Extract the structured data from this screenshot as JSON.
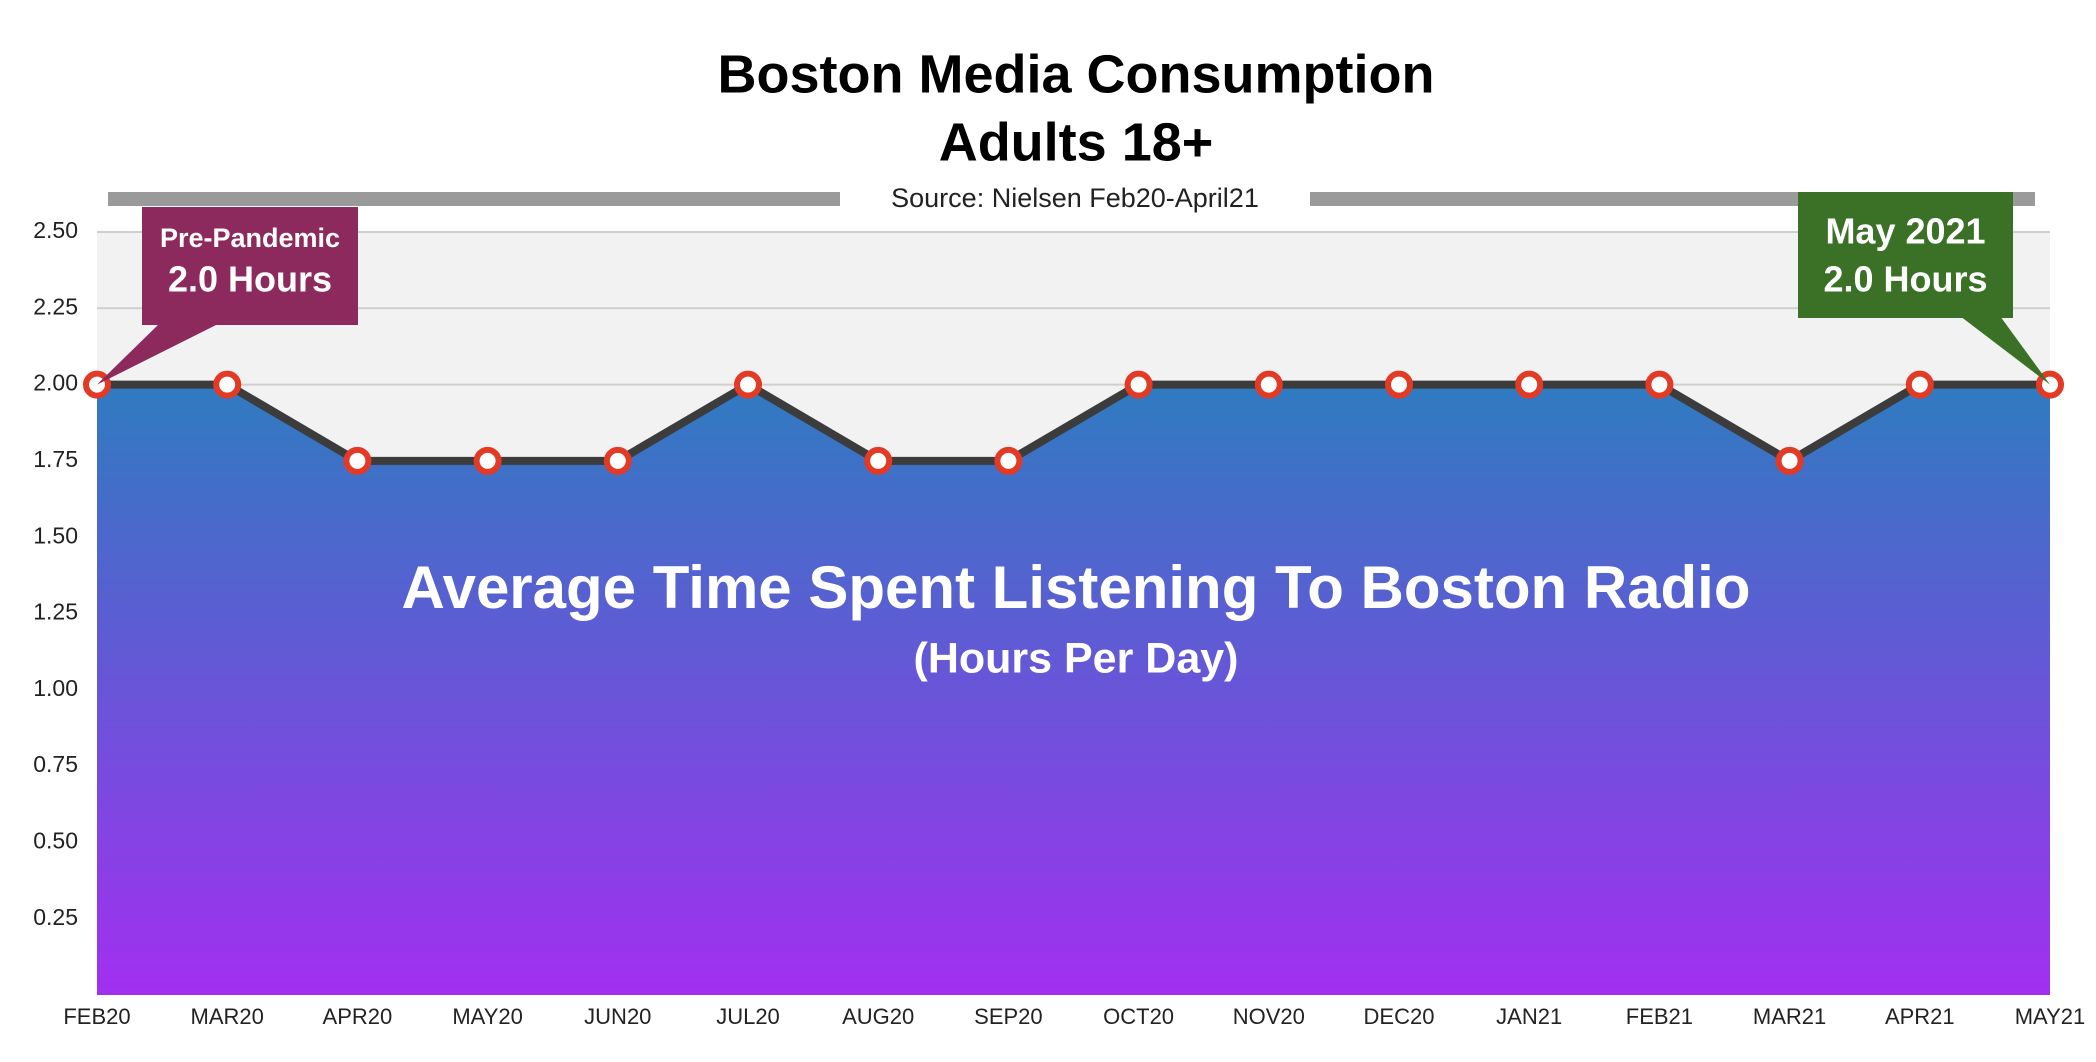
{
  "chart_data": {
    "type": "area",
    "title": "Boston Media Consumption",
    "subtitle": "Adults 18+",
    "source": "Source: Nielsen Feb20-April21",
    "center_label": "Average Time Spent Listening To Boston Radio",
    "center_sublabel": "(Hours Per Day)",
    "categories": [
      "FEB20",
      "MAR20",
      "APR20",
      "MAY20",
      "JUN20",
      "JUL20",
      "AUG20",
      "SEP20",
      "OCT20",
      "NOV20",
      "DEC20",
      "JAN21",
      "FEB21",
      "MAR21",
      "APR21",
      "MAY21"
    ],
    "values": [
      2,
      2,
      1.75,
      1.75,
      1.75,
      2,
      1.75,
      1.75,
      2,
      2,
      2,
      2,
      2,
      1.75,
      2,
      2
    ],
    "line_color": "#3c3c3c",
    "marker_color": "#e23a24",
    "area_gradient": [
      "#2f7bc0",
      "#a22ff0"
    ],
    "ylim": [
      0,
      2.5
    ],
    "yticks": [
      0.25,
      {
        "value": 0.5,
        "label": "0.50"
      },
      0.75,
      {
        "value": 1,
        "label": "1.00"
      },
      1.25,
      {
        "value": 1.5,
        "label": "1.50"
      },
      1.75,
      {
        "value": 2,
        "label": "2.00"
      },
      2.25,
      {
        "value": 2.5,
        "label": "2.50"
      }
    ],
    "grid": true,
    "annotations": [
      {
        "lines": [
          "Pre-Pandemic",
          "2.0 Hours"
        ],
        "color": "#8d2a5d"
      },
      {
        "lines": [
          "May 2021",
          "2.0 Hours"
        ],
        "color": "#3b7126"
      }
    ]
  }
}
